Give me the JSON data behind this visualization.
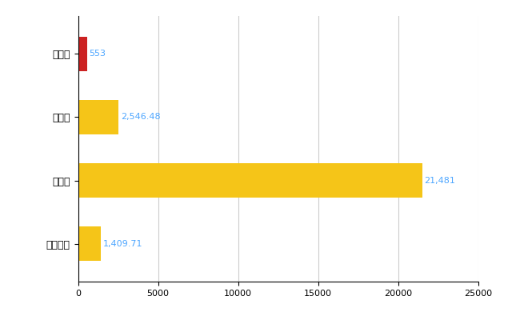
{
  "categories": [
    "竹原市",
    "県平均",
    "県最大",
    "全国平均"
  ],
  "values": [
    553,
    2546.48,
    21481,
    1409.71
  ],
  "labels": [
    "553",
    "2,546.48",
    "21,481",
    "1,409.71"
  ],
  "bar_colors": [
    "#cc2222",
    "#f5c518",
    "#f5c518",
    "#f5c518"
  ],
  "xlim": [
    0,
    25000
  ],
  "xticks": [
    0,
    5000,
    10000,
    15000,
    20000,
    25000
  ],
  "xtick_labels": [
    "0",
    "5000",
    "10000",
    "15000",
    "20000",
    "25000"
  ],
  "background_color": "#ffffff",
  "grid_color": "#cccccc",
  "label_color": "#4da6ff",
  "label_fontsize": 8,
  "tick_fontsize": 8,
  "ylabel_fontsize": 9,
  "bar_height": 0.55
}
